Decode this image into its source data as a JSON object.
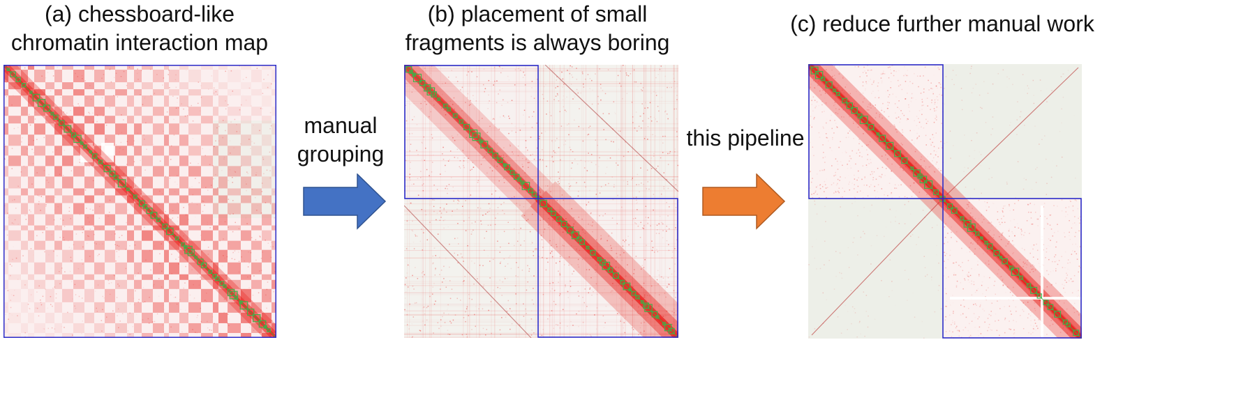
{
  "panels": [
    {
      "id": "a",
      "title_lines": [
        "(a) chessboard-like",
        "chromatin interaction map"
      ]
    },
    {
      "id": "b",
      "title_lines": [
        "(b) placement of small",
        "fragments is always boring"
      ]
    },
    {
      "id": "c",
      "title_lines": [
        "(c) reduce further manual work"
      ]
    }
  ],
  "arrows": [
    {
      "label_lines": [
        "manual",
        "grouping"
      ],
      "color": "#4472C4",
      "edge": "#2F528F"
    },
    {
      "label_lines": [
        "this pipeline"
      ],
      "color": "#ED7D31",
      "edge": "#AE5A21"
    }
  ],
  "colors": {
    "contact": "#E8231E",
    "background": "#EDEFE8",
    "diagonal_marker": "#3CB44B",
    "group_box": "#2B2BC8"
  }
}
